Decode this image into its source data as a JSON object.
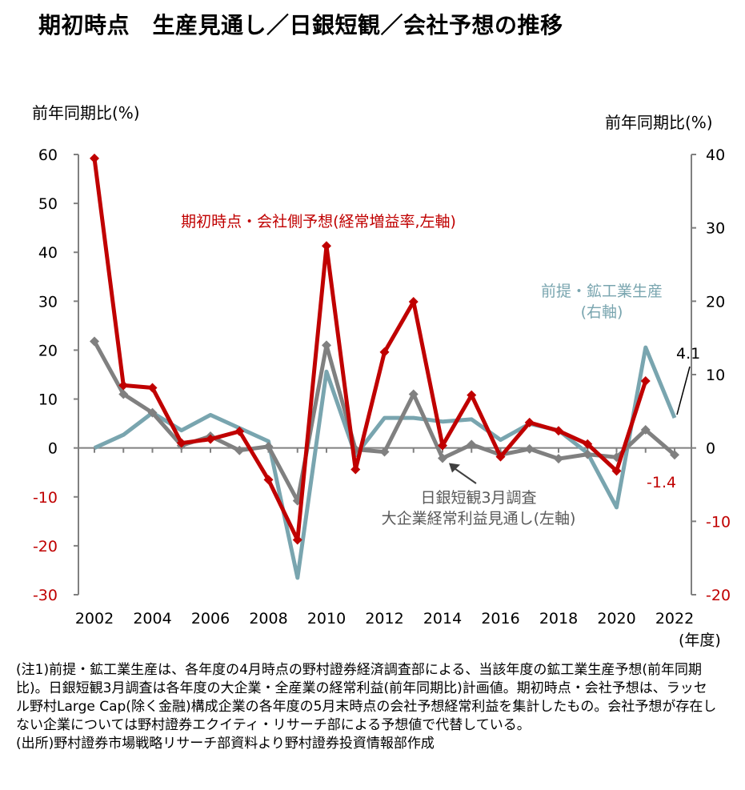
{
  "title": "期初時点　生産見通し／日銀短観／会社予想の推移",
  "chart_data": {
    "type": "line",
    "x": [
      2002,
      2003,
      2004,
      2005,
      2006,
      2007,
      2008,
      2009,
      2010,
      2011,
      2012,
      2013,
      2014,
      2015,
      2016,
      2017,
      2018,
      2019,
      2020,
      2021,
      2022
    ],
    "x_ticks": [
      "2002",
      "2004",
      "2006",
      "2008",
      "2010",
      "2012",
      "2014",
      "2016",
      "2018",
      "2020",
      "2022"
    ],
    "xlabel": "(年度)",
    "ylabel_left": "前年同期比(%)",
    "ylabel_right": "前年同期比(%)",
    "ylim_left": [
      -30,
      60
    ],
    "ylim_right": [
      -20,
      40
    ],
    "yticks_left": [
      60,
      50,
      40,
      30,
      20,
      10,
      0,
      -10,
      -20,
      -30
    ],
    "yticks_right": [
      40,
      30,
      20,
      10,
      0,
      -10,
      -20
    ],
    "grid": false,
    "series": [
      {
        "name": "日銀短観3月調査\n大企業経常利益見通し(左軸)",
        "axis": "left",
        "color": "#808080",
        "marker": "diamond",
        "values": [
          21.8,
          11.0,
          7.2,
          0.5,
          2.4,
          -0.5,
          0.3,
          -10.8,
          21.0,
          -0.3,
          -0.8,
          11.0,
          -2.1,
          0.7,
          -1.4,
          -0.2,
          -2.2,
          -1.3,
          -1.9,
          3.7,
          -1.4
        ]
      },
      {
        "name": "期初時点・会社側予想(経常増益率,左軸)",
        "axis": "left",
        "color": "#C00000",
        "marker": "diamond",
        "values": [
          59.2,
          12.8,
          12.3,
          1.0,
          1.8,
          3.4,
          -6.5,
          -18.8,
          41.3,
          -4.4,
          19.6,
          29.9,
          0.5,
          10.8,
          -1.8,
          5.2,
          3.5,
          0.8,
          -4.7,
          13.7,
          null
        ]
      },
      {
        "name": "前提・鉱工業生産\n(右軸)",
        "axis": "right",
        "color": "#79A5AF",
        "marker": "none",
        "values": [
          0.0,
          1.8,
          4.8,
          2.4,
          4.5,
          2.7,
          0.9,
          -17.7,
          10.4,
          -1.0,
          4.1,
          4.1,
          3.6,
          3.9,
          1.1,
          3.3,
          2.4,
          -0.7,
          -8.1,
          13.7,
          4.1
        ]
      }
    ],
    "annotations": [
      {
        "text": "4.1",
        "color": "#000000"
      },
      {
        "text": "-1.4",
        "color": "#C00000"
      }
    ]
  },
  "notes": [
    "(注1)前提・鉱工業生産は、各年度の4月時点の野村證券経済調査部による、当該年度の鉱工業生産予想(前年同期比)。日銀短観3月調査は各年度の大企業・全産業の経常利益(前年同期比)計画値。期初時点・会社予想は、ラッセル野村Large Cap(除く金融)構成企業の各年度の5月末時点の会社予想経常利益を集計したもの。会社予想が存在しない企業については野村證券エクイティ・リサーチ部による予想値で代替している。",
    "(出所)野村證券市場戦略リサーチ部資料より野村證券投資情報部作成"
  ]
}
